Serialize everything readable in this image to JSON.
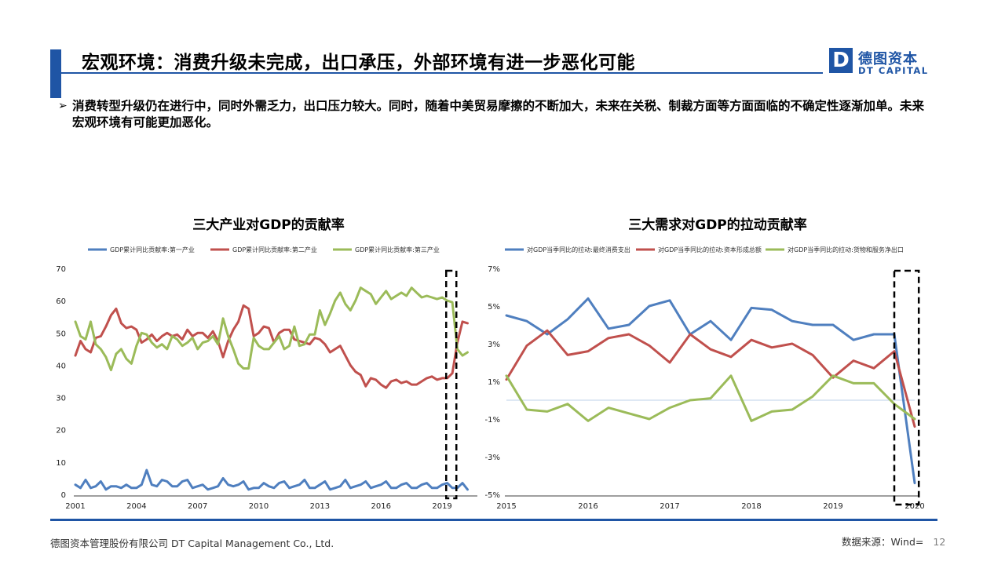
{
  "header": {
    "title": "宏观环境：消费升级未完成，出口承压，外部环境有进一步恶化可能",
    "logo_cn": "德图资本",
    "logo_en": "DT CAPITAL",
    "logo_letter": "D",
    "brand_color": "#1f55a5"
  },
  "bullet": {
    "marker": "➢",
    "text": "消费转型升级仍在进行中，同时外需乏力，出口压力较大。同时，随着中美贸易摩擦的不断加大，未来在关税、制裁方面等方面面临的不确定性逐渐加单。未来宏观环境有可能更加恶化。"
  },
  "footer": {
    "company": "德图资本管理股份有限公司  DT Capital  Management  Co., Ltd.",
    "source": "数据来源：Wind=",
    "page": "12"
  },
  "chart_data": [
    {
      "type": "line",
      "title": "三大产业对GDP的贡献率",
      "x_ticks": [
        "2001",
        "2004",
        "2007",
        "2010",
        "2013",
        "2016",
        "2019"
      ],
      "y_ticks": [
        "0",
        "10",
        "20",
        "30",
        "40",
        "50",
        "60",
        "70"
      ],
      "xlim": [
        2001,
        2020.5
      ],
      "ylim": [
        0,
        70
      ],
      "legend_position": "top",
      "highlight_box": [
        2019.2,
        2019.7
      ],
      "series": [
        {
          "name": "GDP累计同比贡献率:第一产业",
          "color": "#4f7fbf",
          "x": [
            2001,
            2001.25,
            2001.5,
            2001.75,
            2002,
            2002.25,
            2002.5,
            2002.75,
            2003,
            2003.25,
            2003.5,
            2003.75,
            2004,
            2004.25,
            2004.5,
            2004.75,
            2005,
            2005.25,
            2005.5,
            2005.75,
            2006,
            2006.25,
            2006.5,
            2006.75,
            2007,
            2007.25,
            2007.5,
            2007.75,
            2008,
            2008.25,
            2008.5,
            2008.75,
            2009,
            2009.25,
            2009.5,
            2009.75,
            2010,
            2010.25,
            2010.5,
            2010.75,
            2011,
            2011.25,
            2011.5,
            2011.75,
            2012,
            2012.25,
            2012.5,
            2012.75,
            2013,
            2013.25,
            2013.5,
            2013.75,
            2014,
            2014.25,
            2014.5,
            2014.75,
            2015,
            2015.25,
            2015.5,
            2015.75,
            2016,
            2016.25,
            2016.5,
            2016.75,
            2017,
            2017.25,
            2017.5,
            2017.75,
            2018,
            2018.25,
            2018.5,
            2018.75,
            2019,
            2019.25,
            2019.5,
            2019.75,
            2020,
            2020.25
          ],
          "values": [
            3.0,
            2.0,
            4.5,
            2.0,
            2.5,
            4.0,
            1.5,
            2.5,
            2.5,
            2.0,
            3.0,
            2.0,
            2.0,
            3.0,
            7.5,
            3.0,
            2.5,
            4.5,
            4.0,
            2.5,
            2.5,
            4.0,
            4.5,
            2.0,
            2.5,
            3.0,
            1.5,
            2.0,
            2.5,
            5.0,
            3.0,
            2.5,
            3.0,
            4.0,
            1.5,
            2.0,
            2.0,
            3.5,
            2.5,
            2.0,
            3.5,
            4.0,
            2.0,
            2.5,
            3.0,
            4.5,
            2.0,
            2.0,
            3.0,
            4.0,
            1.5,
            2.0,
            2.5,
            4.5,
            2.0,
            2.5,
            3.0,
            4.0,
            2.0,
            2.5,
            3.0,
            4.0,
            2.0,
            2.0,
            3.0,
            3.5,
            2.0,
            2.0,
            3.0,
            3.5,
            2.0,
            2.0,
            3.0,
            3.5,
            2.0,
            2.0,
            3.5,
            1.5
          ]
        },
        {
          "name": "GDP累计同比贡献率:第二产业",
          "color": "#c0504d",
          "x": [
            2001,
            2001.25,
            2001.5,
            2001.75,
            2002,
            2002.25,
            2002.5,
            2002.75,
            2003,
            2003.25,
            2003.5,
            2003.75,
            2004,
            2004.25,
            2004.5,
            2004.75,
            2005,
            2005.25,
            2005.5,
            2005.75,
            2006,
            2006.25,
            2006.5,
            2006.75,
            2007,
            2007.25,
            2007.5,
            2007.75,
            2008,
            2008.25,
            2008.5,
            2008.75,
            2009,
            2009.25,
            2009.5,
            2009.75,
            2010,
            2010.25,
            2010.5,
            2010.75,
            2011,
            2011.25,
            2011.5,
            2011.75,
            2012,
            2012.25,
            2012.5,
            2012.75,
            2013,
            2013.25,
            2013.5,
            2013.75,
            2014,
            2014.25,
            2014.5,
            2014.75,
            2015,
            2015.25,
            2015.5,
            2015.75,
            2016,
            2016.25,
            2016.5,
            2016.75,
            2017,
            2017.25,
            2017.5,
            2017.75,
            2018,
            2018.25,
            2018.5,
            2018.75,
            2019,
            2019.25,
            2019.5,
            2019.75,
            2020,
            2020.25
          ],
          "values": [
            43.0,
            47.5,
            45.0,
            44.0,
            48.5,
            49.0,
            52.0,
            55.5,
            57.5,
            53.0,
            51.5,
            52.0,
            51.0,
            47.0,
            48.0,
            49.5,
            47.5,
            49.0,
            50.0,
            49.0,
            49.5,
            48.0,
            51.0,
            49.0,
            50.0,
            50.0,
            48.5,
            50.5,
            47.5,
            42.5,
            47.5,
            51.0,
            53.5,
            58.5,
            57.5,
            49.0,
            50.0,
            52.0,
            51.5,
            47.0,
            50.0,
            51.0,
            51.0,
            48.0,
            47.5,
            47.0,
            46.5,
            48.5,
            48.0,
            46.5,
            44.0,
            45.0,
            46.0,
            43.0,
            40.0,
            38.0,
            37.0,
            33.5,
            36.0,
            35.5,
            34.0,
            33.0,
            35.0,
            35.5,
            34.5,
            35.0,
            34.0,
            34.0,
            35.0,
            36.0,
            36.5,
            35.5,
            36.0,
            36.0,
            37.5,
            47.0,
            53.5,
            53.0
          ]
        },
        {
          "name": "GDP累计同比贡献率:第三产业",
          "color": "#9bbb59",
          "x": [
            2001,
            2001.25,
            2001.5,
            2001.75,
            2002,
            2002.25,
            2002.5,
            2002.75,
            2003,
            2003.25,
            2003.5,
            2003.75,
            2004,
            2004.25,
            2004.5,
            2004.75,
            2005,
            2005.25,
            2005.5,
            2005.75,
            2006,
            2006.25,
            2006.5,
            2006.75,
            2007,
            2007.25,
            2007.5,
            2007.75,
            2008,
            2008.25,
            2008.5,
            2008.75,
            2009,
            2009.25,
            2009.5,
            2009.75,
            2010,
            2010.25,
            2010.5,
            2010.75,
            2011,
            2011.25,
            2011.5,
            2011.75,
            2012,
            2012.25,
            2012.5,
            2012.75,
            2013,
            2013.25,
            2013.5,
            2013.75,
            2014,
            2014.25,
            2014.5,
            2014.75,
            2015,
            2015.25,
            2015.5,
            2015.75,
            2016,
            2016.25,
            2016.5,
            2016.75,
            2017,
            2017.25,
            2017.5,
            2017.75,
            2018,
            2018.25,
            2018.5,
            2018.75,
            2019,
            2019.25,
            2019.5,
            2019.75,
            2020,
            2020.25
          ],
          "values": [
            53.5,
            49.0,
            48.0,
            53.5,
            46.5,
            45.0,
            42.5,
            38.5,
            43.5,
            45.0,
            42.0,
            40.5,
            46.0,
            50.0,
            49.5,
            47.0,
            45.5,
            46.5,
            45.0,
            49.0,
            48.0,
            46.0,
            47.0,
            48.5,
            45.0,
            47.0,
            47.5,
            49.0,
            46.5,
            54.5,
            49.0,
            45.0,
            40.5,
            39.0,
            39.0,
            48.5,
            46.0,
            45.0,
            45.0,
            47.0,
            49.0,
            45.0,
            46.0,
            52.0,
            46.0,
            46.5,
            49.5,
            49.5,
            57.0,
            52.5,
            56.0,
            60.0,
            62.5,
            59.0,
            57.0,
            60.0,
            64.0,
            63.0,
            62.0,
            59.0,
            61.0,
            63.0,
            60.5,
            61.5,
            62.5,
            61.5,
            64.0,
            62.5,
            61.0,
            61.5,
            61.0,
            60.5,
            61.0,
            60.0,
            59.5,
            45.0,
            43.0,
            44.0
          ]
        }
      ]
    },
    {
      "type": "line",
      "title": "三大需求对GDP的拉动贡献率",
      "x_ticks": [
        "2015",
        "2016",
        "2017",
        "2018",
        "2019",
        "2020"
      ],
      "y_ticks": [
        "-5%",
        "-3%",
        "-1%",
        "1%",
        "3%",
        "5%",
        "7%"
      ],
      "xlim": [
        2015,
        2020
      ],
      "ylim": [
        -5,
        7
      ],
      "legend_position": "top",
      "highlight_box": [
        2019.75,
        2020.05
      ],
      "series": [
        {
          "name": "对GDP当季同比的拉动:最终消费支出",
          "color": "#4f7fbf",
          "x": [
            2015,
            2015.25,
            2015.5,
            2015.75,
            2016,
            2016.25,
            2016.5,
            2016.75,
            2017,
            2017.25,
            2017.5,
            2017.75,
            2018,
            2018.25,
            2018.5,
            2018.75,
            2019,
            2019.25,
            2019.5,
            2019.75,
            2020
          ],
          "values": [
            4.5,
            4.2,
            3.5,
            4.3,
            5.4,
            3.8,
            4.0,
            5.0,
            5.3,
            3.5,
            4.2,
            3.2,
            4.9,
            4.8,
            4.2,
            4.0,
            4.0,
            3.2,
            3.5,
            3.5,
            -4.4
          ]
        },
        {
          "name": "对GDP当季同比的拉动:资本形成总额",
          "color": "#c0504d",
          "x": [
            2015,
            2015.25,
            2015.5,
            2015.75,
            2016,
            2016.25,
            2016.5,
            2016.75,
            2017,
            2017.25,
            2017.5,
            2017.75,
            2018,
            2018.25,
            2018.5,
            2018.75,
            2019,
            2019.25,
            2019.5,
            2019.75,
            2020
          ],
          "values": [
            1.1,
            2.9,
            3.7,
            2.4,
            2.6,
            3.3,
            3.5,
            2.9,
            2.0,
            3.5,
            2.7,
            2.3,
            3.2,
            2.8,
            3.0,
            2.4,
            1.2,
            2.1,
            1.7,
            2.6,
            -1.4
          ]
        },
        {
          "name": "对GDP当季同比的拉动:货物和服务净出口",
          "color": "#9bbb59",
          "x": [
            2015,
            2015.25,
            2015.5,
            2015.75,
            2016,
            2016.25,
            2016.5,
            2016.75,
            2017,
            2017.25,
            2017.5,
            2017.75,
            2018,
            2018.25,
            2018.5,
            2018.75,
            2019,
            2019.25,
            2019.5,
            2019.75,
            2020
          ],
          "values": [
            1.3,
            -0.5,
            -0.6,
            -0.2,
            -1.1,
            -0.4,
            -0.7,
            -1.0,
            -0.4,
            0.0,
            0.1,
            1.3,
            -1.1,
            -0.6,
            -0.5,
            0.2,
            1.3,
            0.9,
            0.9,
            -0.2,
            -1.0
          ]
        }
      ]
    }
  ]
}
